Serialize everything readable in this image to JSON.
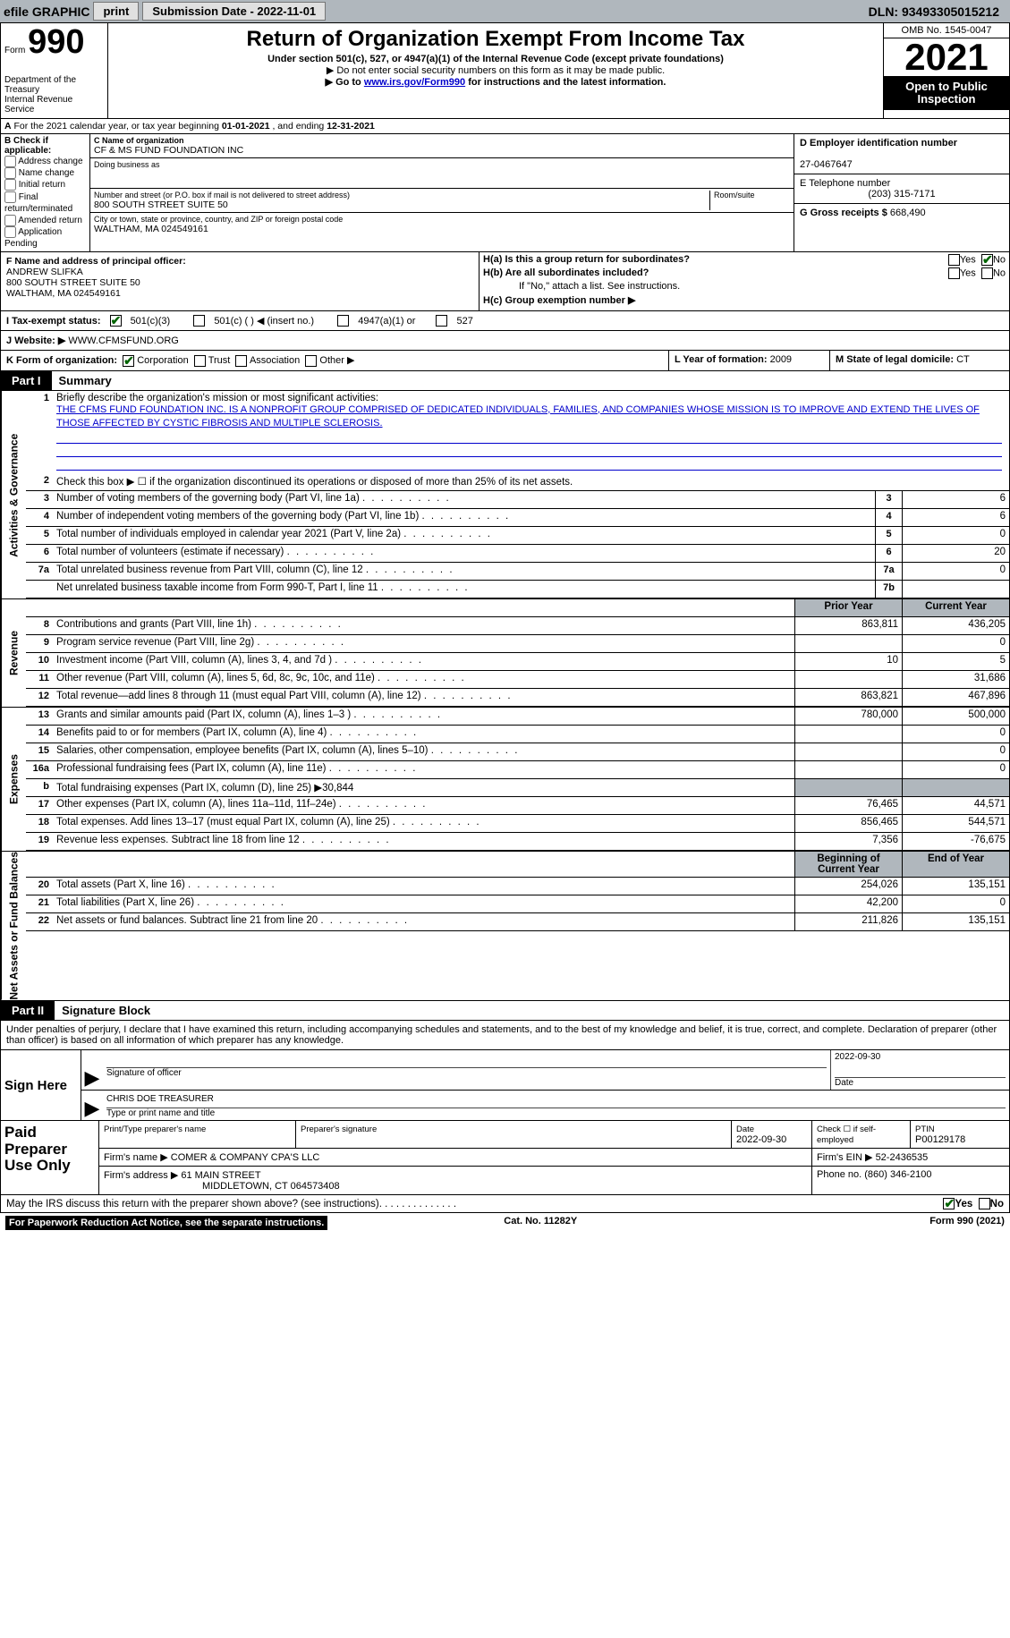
{
  "colors": {
    "toolbar_bg": "#b0b7bd",
    "link": "#0000cc",
    "check_green": "#006400",
    "black": "#000000",
    "white": "#ffffff",
    "grey_shade": "#b0b7bd"
  },
  "toolbar": {
    "efile_label": "efile GRAPHIC",
    "print_btn": "print",
    "submission_label": "Submission Date - 2022-11-01",
    "dln_label": "DLN: 93493305015212"
  },
  "header": {
    "form_prefix": "Form",
    "form_number": "990",
    "dept": "Department of the Treasury",
    "irs": "Internal Revenue Service",
    "title": "Return of Organization Exempt From Income Tax",
    "subtitle": "Under section 501(c), 527, or 4947(a)(1) of the Internal Revenue Code (except private foundations)",
    "warn": "▶ Do not enter social security numbers on this form as it may be made public.",
    "goto_pre": "▶ Go to ",
    "goto_link": "www.irs.gov/Form990",
    "goto_post": " for instructions and the latest information.",
    "omb": "OMB No. 1545-0047",
    "year": "2021",
    "open": "Open to Public Inspection"
  },
  "A": {
    "text_pre": "For the 2021 calendar year, or tax year beginning ",
    "begin": "01-01-2021",
    "mid": " , and ending ",
    "end": "12-31-2021"
  },
  "B": {
    "label": "B Check if applicable:",
    "opts": [
      "Address change",
      "Name change",
      "Initial return",
      "Final return/terminated",
      "Amended return",
      "Application Pending"
    ]
  },
  "C": {
    "name_label": "C Name of organization",
    "name": "CF & MS FUND FOUNDATION INC",
    "dba_label": "Doing business as",
    "dba": "",
    "street_label": "Number and street (or P.O. box if mail is not delivered to street address)",
    "room_label": "Room/suite",
    "street": "800 SOUTH STREET SUITE 50",
    "city_label": "City or town, state or province, country, and ZIP or foreign postal code",
    "city": "WALTHAM, MA  024549161"
  },
  "D": {
    "label": "D Employer identification number",
    "value": "27-0467647"
  },
  "E": {
    "label": "E Telephone number",
    "value": "(203) 315-7171"
  },
  "G": {
    "label": "G Gross receipts $",
    "value": "668,490"
  },
  "F": {
    "label": "F Name and address of principal officer:",
    "name": "ANDREW SLIFKA",
    "street": "800 SOUTH STREET SUITE 50",
    "city": "WALTHAM, MA  024549161"
  },
  "H": {
    "a_label": "H(a)  Is this a group return for subordinates?",
    "b_label": "H(b)  Are all subordinates included?",
    "b_note": "If \"No,\" attach a list. See instructions.",
    "c_label": "H(c)  Group exemption number ▶",
    "yes": "Yes",
    "no": "No"
  },
  "I": {
    "label": "I   Tax-exempt status:",
    "opt1": "501(c)(3)",
    "opt2": "501(c) (  ) ◀ (insert no.)",
    "opt3": "4947(a)(1) or",
    "opt4": "527"
  },
  "J": {
    "label": "J   Website: ▶",
    "value": "WWW.CFMSFUND.ORG"
  },
  "K": {
    "label": "K Form of organization:",
    "opts": [
      "Corporation",
      "Trust",
      "Association",
      "Other ▶"
    ]
  },
  "L": {
    "label": "L Year of formation:",
    "value": "2009"
  },
  "M": {
    "label": "M State of legal domicile:",
    "value": "CT"
  },
  "part1": {
    "label": "Part I",
    "title": "Summary"
  },
  "summary": {
    "sections": [
      {
        "side": "Activities & Governance",
        "rows": [
          {
            "n": "1",
            "desc": "Briefly describe the organization's mission or most significant activities:",
            "mission": "THE CFMS FUND FOUNDATION INC. IS A NONPROFIT GROUP COMPRISED OF DEDICATED INDIVIDUALS, FAMILIES, AND COMPANIES WHOSE MISSION IS TO IMPROVE AND EXTEND THE LIVES OF THOSE AFFECTED BY CYSTIC FIBROSIS AND MULTIPLE SCLEROSIS."
          },
          {
            "n": "2",
            "desc": "Check this box ▶ ☐ if the organization discontinued its operations or disposed of more than 25% of its net assets."
          },
          {
            "n": "3",
            "desc": "Number of voting members of the governing body (Part VI, line 1a)",
            "box": "3",
            "cur": "6"
          },
          {
            "n": "4",
            "desc": "Number of independent voting members of the governing body (Part VI, line 1b)",
            "box": "4",
            "cur": "6"
          },
          {
            "n": "5",
            "desc": "Total number of individuals employed in calendar year 2021 (Part V, line 2a)",
            "box": "5",
            "cur": "0"
          },
          {
            "n": "6",
            "desc": "Total number of volunteers (estimate if necessary)",
            "box": "6",
            "cur": "20"
          },
          {
            "n": "7a",
            "desc": "Total unrelated business revenue from Part VIII, column (C), line 12",
            "box": "7a",
            "cur": "0"
          },
          {
            "n": "",
            "desc": "Net unrelated business taxable income from Form 990-T, Part I, line 11",
            "box": "7b",
            "cur": ""
          }
        ]
      },
      {
        "side": "Revenue",
        "header": {
          "prior": "Prior Year",
          "cur": "Current Year"
        },
        "rows": [
          {
            "n": "8",
            "desc": "Contributions and grants (Part VIII, line 1h)",
            "prior": "863,811",
            "cur": "436,205"
          },
          {
            "n": "9",
            "desc": "Program service revenue (Part VIII, line 2g)",
            "prior": "",
            "cur": "0"
          },
          {
            "n": "10",
            "desc": "Investment income (Part VIII, column (A), lines 3, 4, and 7d )",
            "prior": "10",
            "cur": "5"
          },
          {
            "n": "11",
            "desc": "Other revenue (Part VIII, column (A), lines 5, 6d, 8c, 9c, 10c, and 11e)",
            "prior": "",
            "cur": "31,686"
          },
          {
            "n": "12",
            "desc": "Total revenue—add lines 8 through 11 (must equal Part VIII, column (A), line 12)",
            "prior": "863,821",
            "cur": "467,896"
          }
        ]
      },
      {
        "side": "Expenses",
        "rows": [
          {
            "n": "13",
            "desc": "Grants and similar amounts paid (Part IX, column (A), lines 1–3 )",
            "prior": "780,000",
            "cur": "500,000"
          },
          {
            "n": "14",
            "desc": "Benefits paid to or for members (Part IX, column (A), line 4)",
            "prior": "",
            "cur": "0"
          },
          {
            "n": "15",
            "desc": "Salaries, other compensation, employee benefits (Part IX, column (A), lines 5–10)",
            "prior": "",
            "cur": "0"
          },
          {
            "n": "16a",
            "desc": "Professional fundraising fees (Part IX, column (A), line 11e)",
            "prior": "",
            "cur": "0"
          },
          {
            "n": "b",
            "desc": "Total fundraising expenses (Part IX, column (D), line 25) ▶30,844",
            "grey": true
          },
          {
            "n": "17",
            "desc": "Other expenses (Part IX, column (A), lines 11a–11d, 11f–24e)",
            "prior": "76,465",
            "cur": "44,571"
          },
          {
            "n": "18",
            "desc": "Total expenses. Add lines 13–17 (must equal Part IX, column (A), line 25)",
            "prior": "856,465",
            "cur": "544,571"
          },
          {
            "n": "19",
            "desc": "Revenue less expenses. Subtract line 18 from line 12",
            "prior": "7,356",
            "cur": "-76,675"
          }
        ]
      },
      {
        "side": "Net Assets or Fund Balances",
        "header": {
          "prior": "Beginning of Current Year",
          "cur": "End of Year"
        },
        "rows": [
          {
            "n": "20",
            "desc": "Total assets (Part X, line 16)",
            "prior": "254,026",
            "cur": "135,151"
          },
          {
            "n": "21",
            "desc": "Total liabilities (Part X, line 26)",
            "prior": "42,200",
            "cur": "0"
          },
          {
            "n": "22",
            "desc": "Net assets or fund balances. Subtract line 21 from line 20",
            "prior": "211,826",
            "cur": "135,151"
          }
        ]
      }
    ]
  },
  "part2": {
    "label": "Part II",
    "title": "Signature Block"
  },
  "perjury": "Under penalties of perjury, I declare that I have examined this return, including accompanying schedules and statements, and to the best of my knowledge and belief, it is true, correct, and complete. Declaration of preparer (other than officer) is based on all information of which preparer has any knowledge.",
  "sign": {
    "here": "Sign Here",
    "sig_officer_lbl": "Signature of officer",
    "date_lbl": "Date",
    "date_val": "2022-09-30",
    "name_title": "CHRIS DOE  TREASURER",
    "name_lbl": "Type or print name and title"
  },
  "preparer": {
    "left": "Paid Preparer Use Only",
    "print_name_lbl": "Print/Type preparer's name",
    "sig_lbl": "Preparer's signature",
    "date_lbl": "Date",
    "date_val": "2022-09-30",
    "check_lbl": "Check ☐ if self-employed",
    "ptin_lbl": "PTIN",
    "ptin_val": "P00129178",
    "firm_name_lbl": "Firm's name     ▶",
    "firm_name": "COMER & COMPANY CPA'S LLC",
    "firm_ein_lbl": "Firm's EIN ▶",
    "firm_ein": "52-2436535",
    "firm_addr_lbl": "Firm's address ▶",
    "firm_addr1": "61 MAIN STREET",
    "firm_addr2": "MIDDLETOWN, CT  064573408",
    "phone_lbl": "Phone no.",
    "phone": "(860) 346-2100"
  },
  "discuss": {
    "text": "May the IRS discuss this return with the preparer shown above? (see instructions)",
    "yes": "Yes",
    "no": "No"
  },
  "footer": {
    "paperwork": "For Paperwork Reduction Act Notice, see the separate instructions.",
    "cat": "Cat. No. 11282Y",
    "form": "Form 990 (2021)"
  }
}
